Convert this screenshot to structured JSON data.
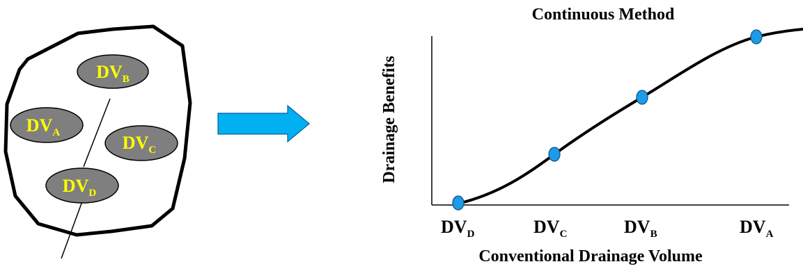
{
  "left_panel": {
    "regions": [
      {
        "id": "B",
        "base": "DV",
        "sub": "B"
      },
      {
        "id": "A",
        "base": "DV",
        "sub": "A"
      },
      {
        "id": "C",
        "base": "DV",
        "sub": "C"
      },
      {
        "id": "D",
        "base": "DV",
        "sub": "D"
      }
    ]
  },
  "chart": {
    "title": "Continuous Method",
    "ylabel": "Drainage Benefits",
    "xlabel": "Conventional Drainage Volume",
    "x_ticks": [
      {
        "base": "DV",
        "sub": "D"
      },
      {
        "base": "DV",
        "sub": "C"
      },
      {
        "base": "DV",
        "sub": "B"
      },
      {
        "base": "DV",
        "sub": "A"
      }
    ]
  },
  "colors": {
    "region_fill": "#7f7f7f",
    "region_text": "#ffff00",
    "arrow_fill": "#00b0f0",
    "point_fill": "#1e9be6",
    "ink": "#000000"
  }
}
